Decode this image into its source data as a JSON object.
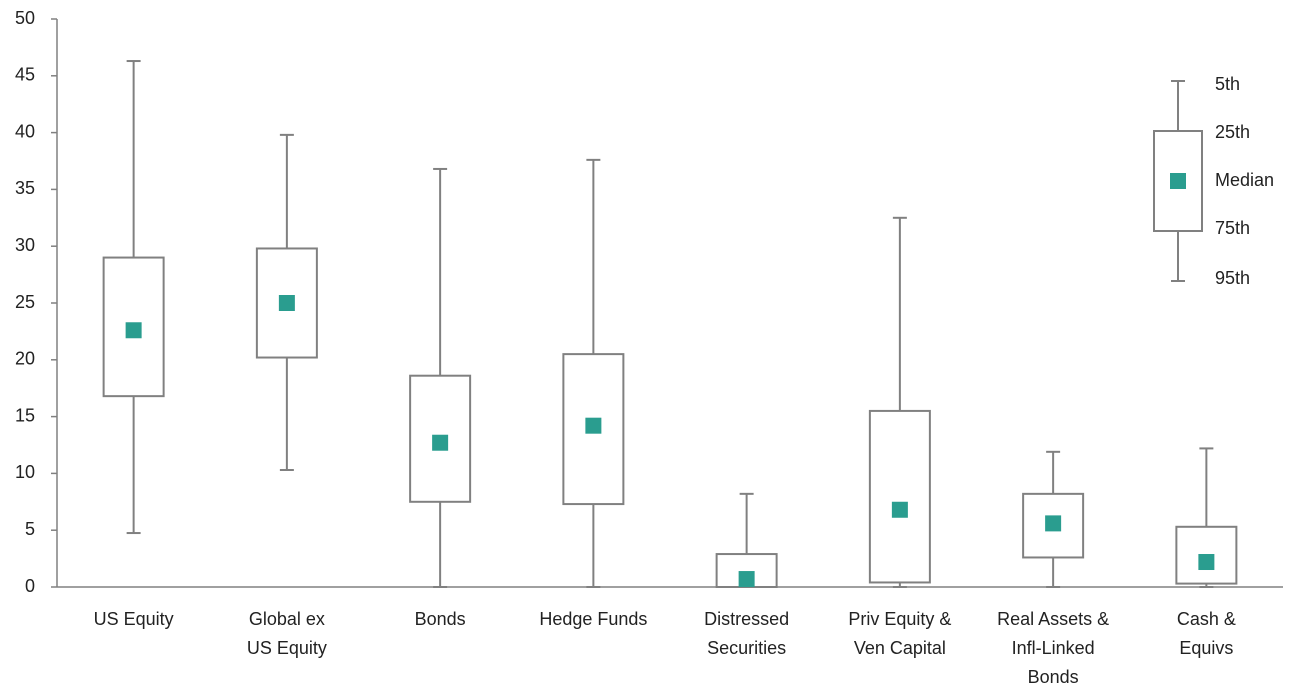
{
  "chart_data": {
    "type": "box",
    "categories": [
      [
        "US Equity"
      ],
      [
        "Global ex",
        "US Equity"
      ],
      [
        "Bonds"
      ],
      [
        "Hedge Funds"
      ],
      [
        "Distressed",
        "Securities"
      ],
      [
        "Priv Equity &",
        "Ven Capital"
      ],
      [
        "Real Assets &",
        "Infl-Linked",
        "Bonds"
      ],
      [
        "Cash &",
        "Equivs"
      ]
    ],
    "high": [
      46.3,
      39.8,
      36.8,
      37.6,
      8.2,
      32.5,
      11.9,
      12.2
    ],
    "q3": [
      29.0,
      29.8,
      18.6,
      20.5,
      2.9,
      15.5,
      8.2,
      5.3
    ],
    "median": [
      22.6,
      25.0,
      12.7,
      14.2,
      0.7,
      6.8,
      5.6,
      2.2
    ],
    "q1": [
      16.8,
      20.2,
      7.5,
      7.3,
      0,
      0.4,
      2.6,
      0.3
    ],
    "low": [
      4.75,
      10.3,
      0,
      0,
      0,
      0,
      0,
      0
    ],
    "box_color": "#808080",
    "median_color": "#2a9d8f",
    "ylim": [
      0,
      50
    ],
    "yticks": [
      0,
      5,
      10,
      15,
      20,
      25,
      30,
      35,
      40,
      45,
      50
    ],
    "legend_labels": [
      "5th",
      "25th",
      "Median",
      "75th",
      "95th"
    ]
  }
}
